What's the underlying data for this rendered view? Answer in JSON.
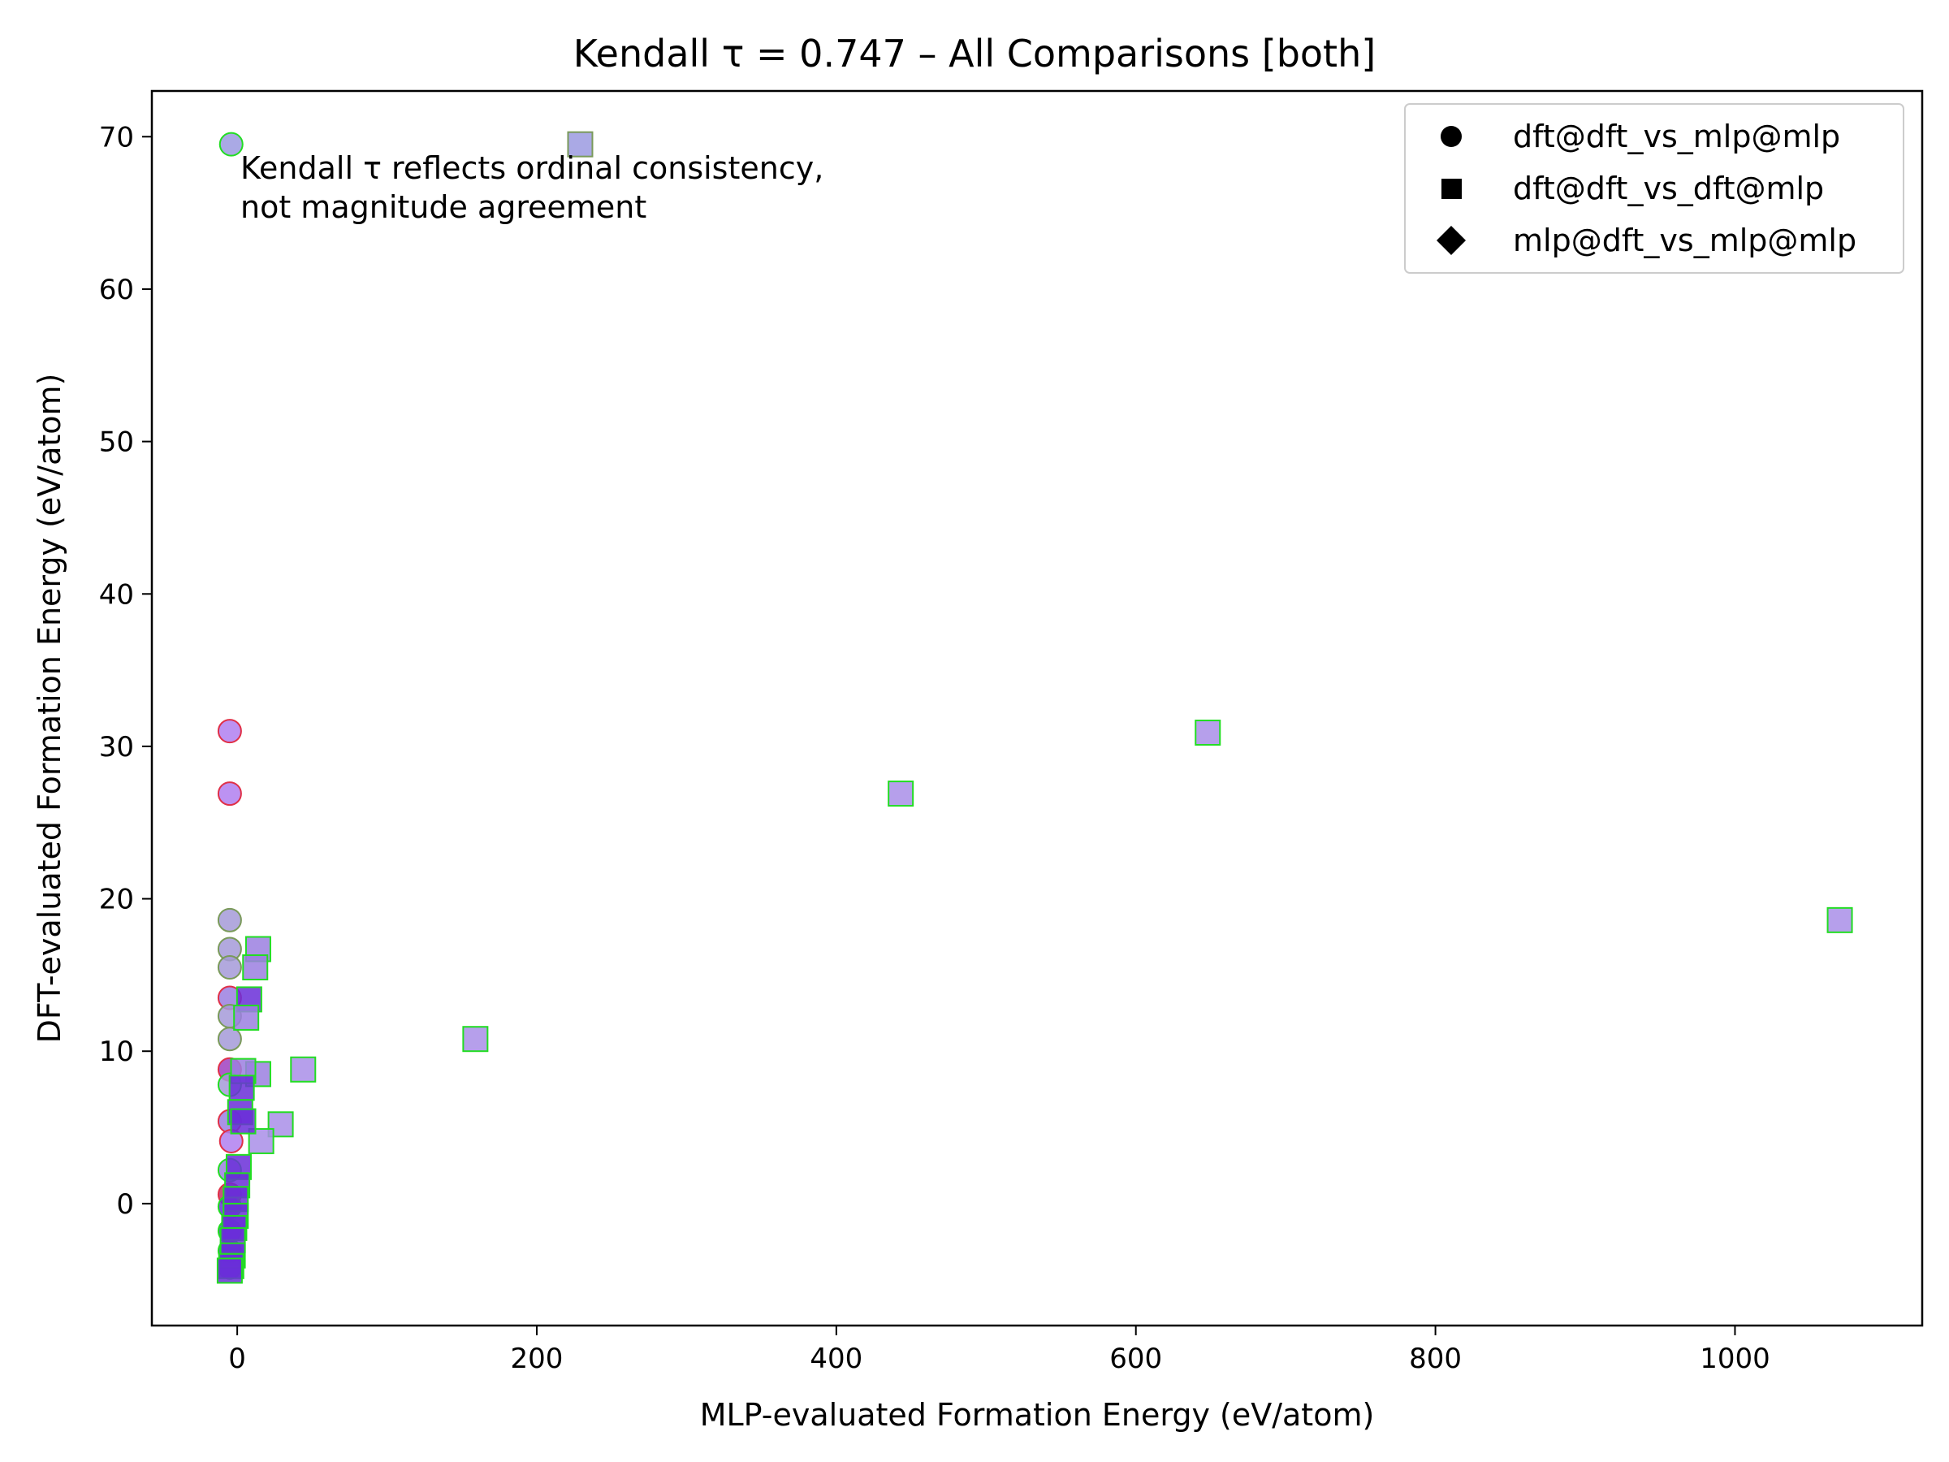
{
  "chart_data": {
    "type": "scatter",
    "title": "Kendall τ = 0.747 – All Comparisons [both]",
    "xlabel": "MLP-evaluated Formation Energy (eV/atom)",
    "ylabel": "DFT-evaluated Formation Energy (eV/atom)",
    "xlim": [
      -57,
      1125
    ],
    "ylim": [
      -8,
      73
    ],
    "xticks": [
      0,
      200,
      400,
      600,
      800,
      1000
    ],
    "yticks": [
      0,
      10,
      20,
      30,
      40,
      50,
      60,
      70
    ],
    "grid": false,
    "legend_position": "top-right",
    "annotation": [
      "Kendall τ reflects ordinal consistency,",
      "not magnitude agreement"
    ],
    "legend": [
      {
        "label": "dft@dft_vs_mlp@mlp",
        "marker": "circle"
      },
      {
        "label": "dft@dft_vs_dft@mlp",
        "marker": "square"
      },
      {
        "label": "mlp@dft_vs_mlp@mlp",
        "marker": "diamond"
      }
    ],
    "colors": {
      "fill_light": "#a98ee8",
      "fill_medium": "#9b7fe0",
      "fill_dark": "#6a2ed8",
      "edge_green": "#22dd22",
      "edge_red": "#e03048"
    },
    "series": [
      {
        "name": "dft@dft_vs_mlp@mlp",
        "marker": "circle",
        "points": [
          {
            "x": -4,
            "y": 69.5,
            "fill": "#9b9ae0",
            "edge": "#22dd22"
          },
          {
            "x": -5,
            "y": 31.0,
            "fill": "#b07ff0",
            "edge": "#e03048"
          },
          {
            "x": -5,
            "y": 26.9,
            "fill": "#b07ff0",
            "edge": "#e03048"
          },
          {
            "x": -5,
            "y": 18.6,
            "fill": "#a59ad8",
            "edge": "#7a9a5a"
          },
          {
            "x": -5,
            "y": 16.7,
            "fill": "#a59ad8",
            "edge": "#7a9a5a"
          },
          {
            "x": -5,
            "y": 15.5,
            "fill": "#a59ad8",
            "edge": "#7a9a5a"
          },
          {
            "x": -5,
            "y": 13.5,
            "fill": "#9b7fe0",
            "edge": "#e03048"
          },
          {
            "x": -5,
            "y": 12.3,
            "fill": "#a59ad8",
            "edge": "#7a9a5a"
          },
          {
            "x": -5,
            "y": 10.8,
            "fill": "#a59ad8",
            "edge": "#7a9a5a"
          },
          {
            "x": -5,
            "y": 8.8,
            "fill": "#a040c0",
            "edge": "#e03048"
          },
          {
            "x": -5,
            "y": 7.8,
            "fill": "#a59ad8",
            "edge": "#22dd22"
          },
          {
            "x": -5,
            "y": 5.4,
            "fill": "#9b7fe0",
            "edge": "#e03048"
          },
          {
            "x": -4,
            "y": 4.1,
            "fill": "#b07ff0",
            "edge": "#e03048"
          },
          {
            "x": -5,
            "y": 2.2,
            "fill": "#9b7fe0",
            "edge": "#22dd22"
          },
          {
            "x": -5,
            "y": 0.6,
            "fill": "#c0306a",
            "edge": "#e03048"
          },
          {
            "x": -5,
            "y": -0.2,
            "fill": "#6a2ed8",
            "edge": "#22dd22"
          },
          {
            "x": -5,
            "y": -1.8,
            "fill": "#6a2ed8",
            "edge": "#22dd22"
          },
          {
            "x": -5,
            "y": -3.1,
            "fill": "#6a2ed8",
            "edge": "#22dd22"
          },
          {
            "x": -5,
            "y": -4.2,
            "fill": "#6a2ed8",
            "edge": "#22dd22"
          }
        ]
      },
      {
        "name": "dft@dft_vs_dft@mlp",
        "marker": "square",
        "points": [
          {
            "x": 229,
            "y": 69.5,
            "fill": "#9b9ae0",
            "edge": "#7a9a5a"
          },
          {
            "x": 648,
            "y": 30.9,
            "fill": "#a98ee8",
            "edge": "#22dd22"
          },
          {
            "x": 443,
            "y": 26.9,
            "fill": "#a98ee8",
            "edge": "#22dd22"
          },
          {
            "x": 1070,
            "y": 18.6,
            "fill": "#a98ee8",
            "edge": "#22dd22"
          },
          {
            "x": 159,
            "y": 10.8,
            "fill": "#a98ee8",
            "edge": "#22dd22"
          },
          {
            "x": 44,
            "y": 8.8,
            "fill": "#a98ee8",
            "edge": "#22dd22"
          },
          {
            "x": 29,
            "y": 5.2,
            "fill": "#a98ee8",
            "edge": "#22dd22"
          },
          {
            "x": 16,
            "y": 4.1,
            "fill": "#a98ee8",
            "edge": "#22dd22"
          },
          {
            "x": 14,
            "y": 16.7,
            "fill": "#9b7fe0",
            "edge": "#22dd22"
          },
          {
            "x": 12,
            "y": 15.5,
            "fill": "#9b7fe0",
            "edge": "#22dd22"
          },
          {
            "x": 8,
            "y": 13.4,
            "fill": "#6a2ed8",
            "edge": "#22dd22"
          },
          {
            "x": 6,
            "y": 12.2,
            "fill": "#9b7fe0",
            "edge": "#22dd22"
          },
          {
            "x": 14,
            "y": 8.5,
            "fill": "#9b7fe0",
            "edge": "#22dd22"
          },
          {
            "x": 4,
            "y": 8.7,
            "fill": "#9b7fe0",
            "edge": "#22dd22"
          },
          {
            "x": 3,
            "y": 7.6,
            "fill": "#6a2ed8",
            "edge": "#22dd22"
          },
          {
            "x": 2,
            "y": 6.0,
            "fill": "#6a2ed8",
            "edge": "#22dd22"
          },
          {
            "x": 4,
            "y": 5.4,
            "fill": "#6a2ed8",
            "edge": "#22dd22"
          },
          {
            "x": 1,
            "y": 2.4,
            "fill": "#6a2ed8",
            "edge": "#22dd22"
          },
          {
            "x": 0,
            "y": 1.2,
            "fill": "#6a2ed8",
            "edge": "#22dd22"
          },
          {
            "x": -1,
            "y": 0.3,
            "fill": "#6a2ed8",
            "edge": "#22dd22"
          },
          {
            "x": -1,
            "y": -0.8,
            "fill": "#6a2ed8",
            "edge": "#22dd22"
          },
          {
            "x": -2,
            "y": -1.6,
            "fill": "#6a2ed8",
            "edge": "#22dd22"
          },
          {
            "x": -3,
            "y": -2.4,
            "fill": "#6a2ed8",
            "edge": "#22dd22"
          },
          {
            "x": -3,
            "y": -3.4,
            "fill": "#6a2ed8",
            "edge": "#22dd22"
          },
          {
            "x": -4,
            "y": -4.1,
            "fill": "#6a2ed8",
            "edge": "#22dd22"
          },
          {
            "x": -5,
            "y": -4.4,
            "fill": "#6a2ed8",
            "edge": "#22dd22"
          }
        ]
      },
      {
        "name": "mlp@dft_vs_mlp@mlp",
        "marker": "diamond",
        "points": []
      }
    ]
  }
}
